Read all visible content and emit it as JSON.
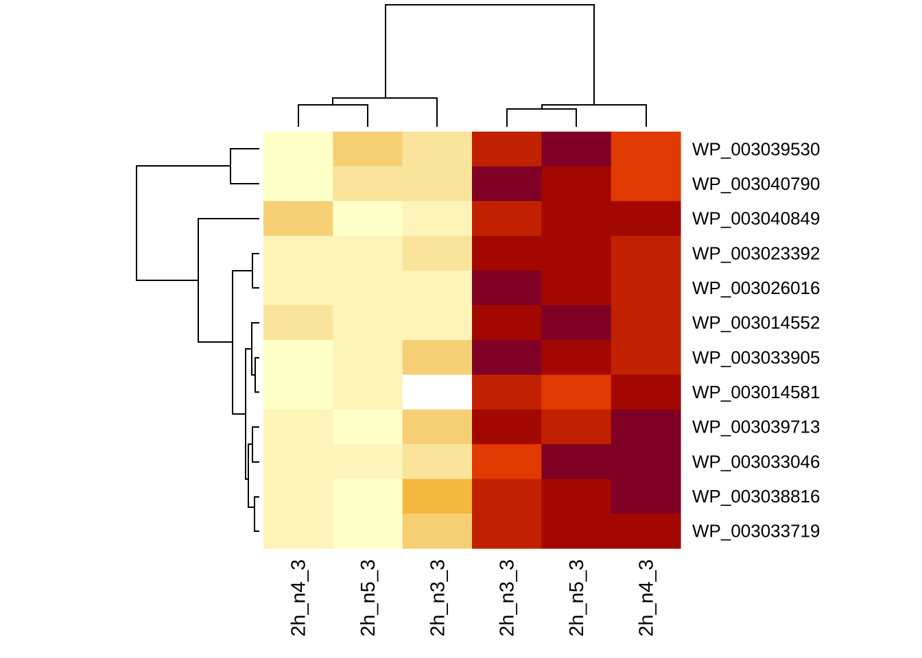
{
  "chart_data": {
    "type": "heatmap",
    "title": "",
    "columns": [
      "2h_n4_3",
      "2h_n5_3",
      "2h_n3_3",
      "2h_n3_3",
      "2h_n5_3",
      "2h_n4_3"
    ],
    "rows": [
      "WP_003039530",
      "WP_003040790",
      "WP_003040849",
      "WP_003023392",
      "WP_003026016",
      "WP_003014552",
      "WP_003033905",
      "WP_003014581",
      "WP_003039713",
      "WP_003033046",
      "WP_003038816",
      "WP_003033719"
    ],
    "palette": [
      "#800026",
      "#A30800",
      "#C22100",
      "#E03A00",
      "#F5B83E",
      "#F6CF75",
      "#FAE39B",
      "#FEF3B8",
      "#FFFFC8",
      "#FFFFFF"
    ],
    "levels": [
      [
        8,
        5,
        6,
        2,
        0,
        3
      ],
      [
        8,
        6,
        6,
        0,
        1,
        3
      ],
      [
        5,
        8,
        7,
        2,
        1,
        1
      ],
      [
        7,
        7,
        6,
        1,
        1,
        2
      ],
      [
        7,
        7,
        7,
        0,
        1,
        2
      ],
      [
        6,
        7,
        7,
        1,
        0,
        2
      ],
      [
        8,
        7,
        5,
        0,
        1,
        2
      ],
      [
        8,
        7,
        9,
        2,
        3,
        1
      ],
      [
        7,
        8,
        5,
        1,
        2,
        0
      ],
      [
        7,
        7,
        6,
        3,
        0,
        0
      ],
      [
        7,
        8,
        4,
        2,
        1,
        0
      ],
      [
        7,
        8,
        5,
        2,
        1,
        1
      ]
    ],
    "row_dendrogram": true,
    "column_dendrogram": true,
    "legend": "none"
  }
}
